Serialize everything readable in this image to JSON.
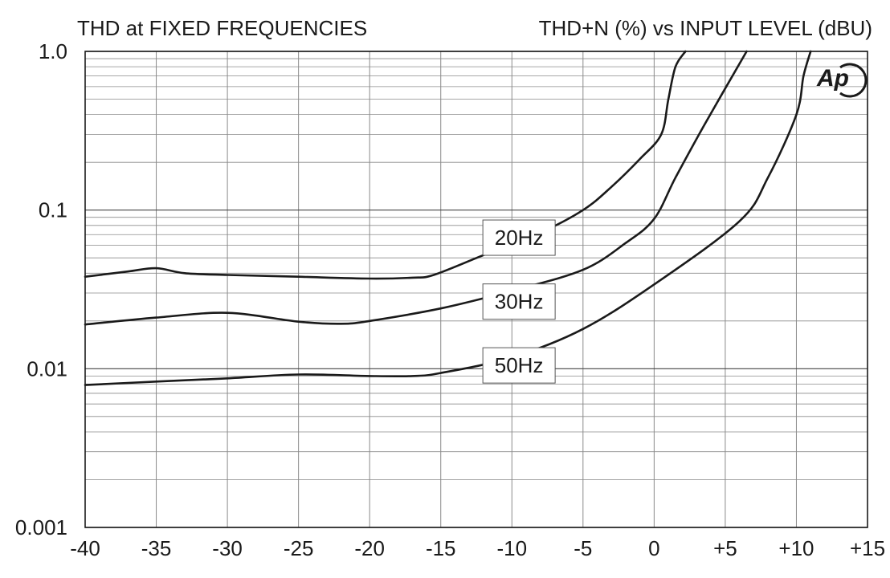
{
  "chart_data": {
    "type": "line",
    "title": "THD at FIXED FREQUENCIES",
    "subtitle": "THD+N (%) vs INPUT LEVEL (dBU)",
    "xlabel": "",
    "ylabel": "",
    "xlim": [
      -40,
      15
    ],
    "ylim": [
      0.001,
      1.0
    ],
    "yscale": "log",
    "grid": true,
    "x_ticks": [
      "-40",
      "-35",
      "-30",
      "-25",
      "-20",
      "-15",
      "-10",
      "-5",
      "0",
      "+5",
      "+10",
      "+15"
    ],
    "x_tick_values": [
      -40,
      -35,
      -30,
      -25,
      -20,
      -15,
      -10,
      -5,
      0,
      5,
      10,
      15
    ],
    "y_ticks": [
      "1.0",
      "0.1",
      "0.01",
      "0.001"
    ],
    "y_tick_values": [
      1.0,
      0.1,
      0.01,
      0.001
    ],
    "series": [
      {
        "name": "20Hz",
        "label_at": [
          -9.5,
          0.067
        ],
        "points": [
          [
            -40,
            0.038
          ],
          [
            -37,
            0.041
          ],
          [
            -35,
            0.043
          ],
          [
            -33,
            0.04
          ],
          [
            -30,
            0.039
          ],
          [
            -25,
            0.038
          ],
          [
            -20,
            0.037
          ],
          [
            -17,
            0.0375
          ],
          [
            -15.5,
            0.039
          ],
          [
            -12,
            0.052
          ],
          [
            -8,
            0.072
          ],
          [
            -5,
            0.1
          ],
          [
            -3,
            0.14
          ],
          [
            -1,
            0.21
          ],
          [
            0.5,
            0.3
          ],
          [
            1,
            0.5
          ],
          [
            1.5,
            0.8
          ],
          [
            2.2,
            1.0
          ]
        ]
      },
      {
        "name": "30Hz",
        "label_at": [
          -9.5,
          0.0265
        ],
        "points": [
          [
            -40,
            0.019
          ],
          [
            -35,
            0.021
          ],
          [
            -30,
            0.0225
          ],
          [
            -25,
            0.0198
          ],
          [
            -22,
            0.0192
          ],
          [
            -20,
            0.02
          ],
          [
            -15,
            0.024
          ],
          [
            -10,
            0.031
          ],
          [
            -5,
            0.042
          ],
          [
            -2,
            0.062
          ],
          [
            0,
            0.088
          ],
          [
            1.5,
            0.16
          ],
          [
            3.5,
            0.34
          ],
          [
            6.5,
            1.0
          ]
        ]
      },
      {
        "name": "50Hz",
        "label_at": [
          -9.5,
          0.0105
        ],
        "points": [
          [
            -40,
            0.0079
          ],
          [
            -35,
            0.0083
          ],
          [
            -30,
            0.0087
          ],
          [
            -25,
            0.0092
          ],
          [
            -20,
            0.009
          ],
          [
            -17,
            0.009
          ],
          [
            -15,
            0.0094
          ],
          [
            -10,
            0.0118
          ],
          [
            -5,
            0.0178
          ],
          [
            0,
            0.034
          ],
          [
            6,
            0.085
          ],
          [
            8,
            0.16
          ],
          [
            10,
            0.4
          ],
          [
            10.5,
            0.7
          ],
          [
            11,
            1.0
          ]
        ]
      }
    ]
  }
}
